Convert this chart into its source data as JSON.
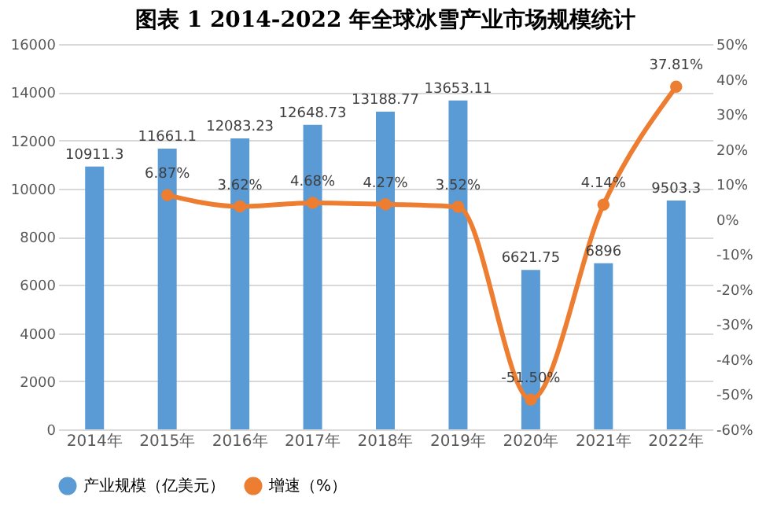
{
  "chart_data": {
    "type": "bar",
    "title": "图表 1     2014-2022 年全球冰雪产业市场规模统计",
    "categories": [
      "2014年",
      "2015年",
      "2016年",
      "2017年",
      "2018年",
      "2019年",
      "2020年",
      "2021年",
      "2022年"
    ],
    "series": [
      {
        "name": "产业规模（亿美元）",
        "color": "#5b9bd5",
        "values": [
          10911.3,
          11661.1,
          12083.23,
          12648.73,
          13188.77,
          13653.11,
          6621.75,
          6896,
          9503.3
        ],
        "value_labels": [
          "10911.3",
          "11661.1",
          "12083.23",
          "12648.73",
          "13188.77",
          "13653.11",
          "6621.75",
          "6896",
          "9503.3"
        ]
      },
      {
        "name": "增速（%）",
        "type": "line",
        "axis": "y2",
        "color": "#ed7d31",
        "marker": "circle",
        "values": [
          null,
          6.87,
          3.62,
          4.68,
          4.27,
          3.52,
          -51.5,
          4.14,
          37.81
        ],
        "value_labels": [
          null,
          "6.87%",
          "3.62%",
          "4.68%",
          "4.27%",
          "3.52%",
          "-51.50%",
          "4.14%",
          "37.81%"
        ]
      }
    ],
    "ylim": [
      0,
      16000
    ],
    "yticks": [
      0,
      2000,
      4000,
      6000,
      8000,
      10000,
      12000,
      14000,
      16000
    ],
    "y2lim": [
      -60,
      50
    ],
    "y2ticks": [
      {
        "value": -60,
        "label": "-60%"
      },
      {
        "value": -50,
        "label": "-50%"
      },
      {
        "value": -40,
        "label": "-40%"
      },
      {
        "value": -30,
        "label": "-30%"
      },
      {
        "value": -20,
        "label": "-20%"
      },
      {
        "value": -10,
        "label": "-10%"
      },
      {
        "value": 0,
        "label": "0%"
      },
      {
        "value": 10,
        "label": "10%"
      },
      {
        "value": 20,
        "label": "20%"
      },
      {
        "value": 30,
        "label": "30%"
      },
      {
        "value": 40,
        "label": "40%"
      },
      {
        "value": 50,
        "label": "50%"
      }
    ],
    "grid": "y",
    "legend": "bottom"
  }
}
